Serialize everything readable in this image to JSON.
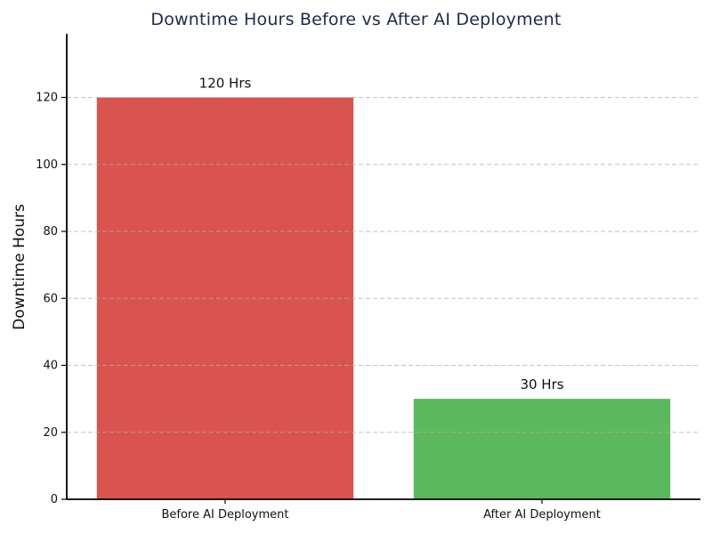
{
  "chart_data": {
    "type": "bar",
    "title": "Downtime Hours Before vs After AI Deployment",
    "xlabel": "",
    "ylabel": "Downtime Hours",
    "categories": [
      "Before AI Deployment",
      "After AI Deployment"
    ],
    "values": [
      120,
      30
    ],
    "bar_labels": [
      "120 Hrs",
      "30 Hrs"
    ],
    "bar_colors": [
      "#d9534f",
      "#5cb85c"
    ],
    "ylim": [
      0,
      139
    ],
    "yticks": [
      0,
      20,
      40,
      60,
      80,
      100,
      120
    ],
    "grid": {
      "axis": "y",
      "style": "dashed",
      "color": "#b0b0b0",
      "opacity": 0.75,
      "above_bars": true
    },
    "legend": "none",
    "colors": {
      "title": "#1c2b4a",
      "text": "#111111",
      "axis": "#000000",
      "background": "#ffffff"
    }
  }
}
